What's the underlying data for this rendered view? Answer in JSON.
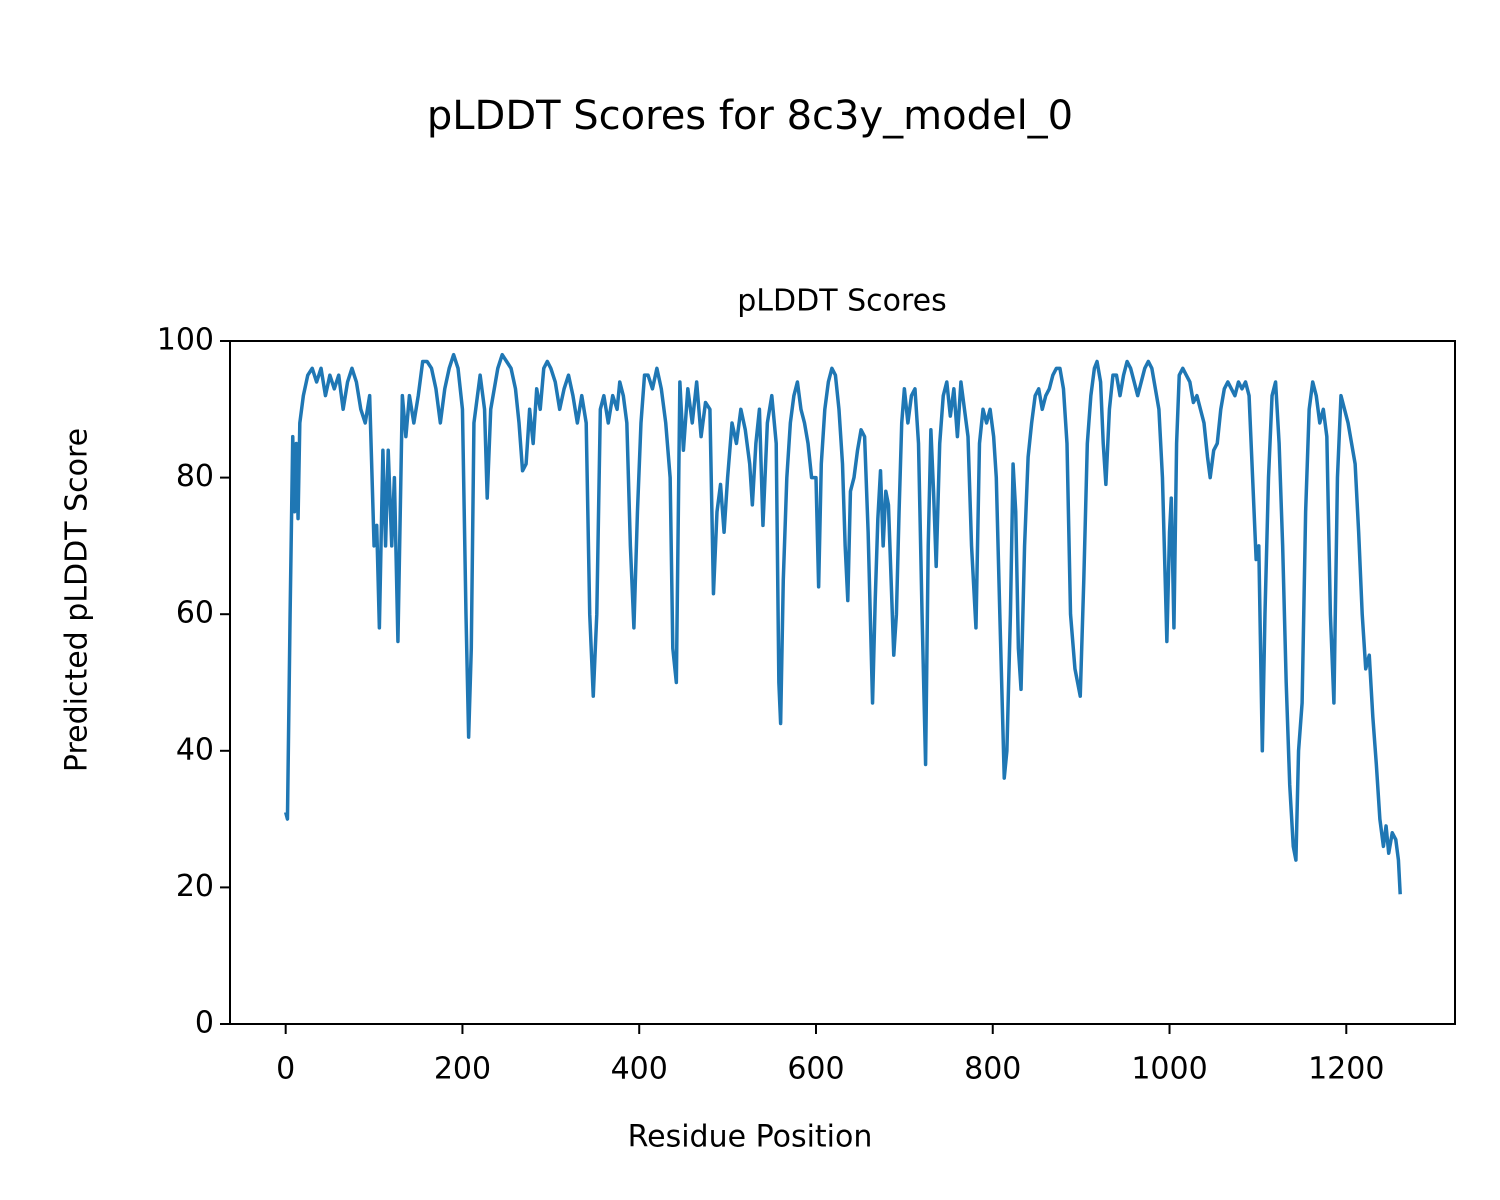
{
  "chart_data": {
    "type": "line",
    "title": "pLDDT Scores for 8c3y_model_0",
    "subtitle": "pLDDT Scores",
    "x_label": "Residue Position",
    "y_label": "Predicted pLDDT Score",
    "color": "#1f77b4",
    "xlim": [
      -63,
      1323
    ],
    "xticks": [
      0,
      200,
      400,
      600,
      800,
      1000,
      1200
    ],
    "ylim": [
      0,
      100
    ],
    "yticks": [
      0,
      20,
      40,
      60,
      80,
      100
    ],
    "grid": false,
    "x": [
      0,
      2,
      5,
      8,
      10,
      12,
      14,
      16,
      20,
      25,
      30,
      35,
      40,
      45,
      50,
      55,
      60,
      65,
      70,
      75,
      80,
      85,
      90,
      95,
      100,
      103,
      106,
      110,
      113,
      116,
      120,
      123,
      127,
      132,
      136,
      140,
      145,
      150,
      155,
      160,
      165,
      170,
      175,
      180,
      185,
      190,
      195,
      200,
      204,
      207,
      210,
      213,
      217,
      220,
      225,
      228,
      232,
      236,
      240,
      245,
      250,
      255,
      260,
      264,
      268,
      272,
      276,
      280,
      284,
      288,
      292,
      296,
      300,
      305,
      310,
      315,
      320,
      325,
      330,
      335,
      340,
      344,
      348,
      352,
      356,
      360,
      365,
      370,
      375,
      378,
      382,
      386,
      390,
      394,
      398,
      402,
      406,
      410,
      415,
      420,
      425,
      430,
      435,
      438,
      442,
      446,
      450,
      455,
      460,
      465,
      470,
      475,
      480,
      484,
      488,
      492,
      496,
      500,
      505,
      510,
      515,
      520,
      525,
      528,
      532,
      536,
      540,
      545,
      550,
      555,
      558,
      560,
      563,
      567,
      571,
      575,
      579,
      583,
      587,
      591,
      595,
      600,
      603,
      606,
      610,
      614,
      618,
      622,
      626,
      630,
      633,
      636,
      639,
      643,
      647,
      651,
      655,
      659,
      664,
      667,
      670,
      673,
      676,
      679,
      682,
      685,
      688,
      691,
      694,
      697,
      700,
      704,
      708,
      712,
      716,
      720,
      724,
      727,
      730,
      733,
      736,
      740,
      744,
      748,
      752,
      756,
      760,
      764,
      768,
      772,
      776,
      781,
      785,
      789,
      793,
      797,
      801,
      804,
      808,
      813,
      816,
      820,
      823,
      826,
      829,
      832,
      836,
      840,
      844,
      848,
      852,
      856,
      860,
      864,
      868,
      872,
      876,
      880,
      884,
      888,
      893,
      899,
      903,
      907,
      911,
      915,
      918,
      922,
      925,
      928,
      932,
      936,
      940,
      944,
      948,
      952,
      956,
      960,
      964,
      968,
      972,
      976,
      980,
      984,
      988,
      992,
      997,
      1000,
      1002,
      1005,
      1008,
      1011,
      1015,
      1019,
      1023,
      1027,
      1031,
      1035,
      1039,
      1043,
      1046,
      1050,
      1054,
      1058,
      1062,
      1066,
      1070,
      1074,
      1078,
      1082,
      1086,
      1090,
      1094,
      1098,
      1101,
      1105,
      1108,
      1112,
      1116,
      1120,
      1124,
      1128,
      1132,
      1136,
      1140,
      1143,
      1146,
      1150,
      1154,
      1158,
      1162,
      1166,
      1170,
      1174,
      1178,
      1182,
      1186,
      1190,
      1194,
      1198,
      1202,
      1206,
      1210,
      1214,
      1218,
      1222,
      1226,
      1230,
      1234,
      1238,
      1242,
      1245,
      1248,
      1252,
      1256,
      1259,
      1261
    ],
    "values": [
      31,
      30,
      60,
      86,
      75,
      85,
      74,
      88,
      92,
      95,
      96,
      94,
      96,
      92,
      95,
      93,
      95,
      90,
      94,
      96,
      94,
      90,
      88,
      92,
      70,
      73,
      58,
      84,
      70,
      84,
      70,
      80,
      56,
      92,
      86,
      92,
      88,
      92,
      97,
      97,
      96,
      93,
      88,
      93,
      96,
      98,
      96,
      90,
      60,
      42,
      55,
      88,
      92,
      95,
      90,
      77,
      90,
      93,
      96,
      98,
      97,
      96,
      93,
      88,
      81,
      82,
      90,
      85,
      93,
      90,
      96,
      97,
      96,
      94,
      90,
      93,
      95,
      92,
      88,
      92,
      88,
      60,
      48,
      60,
      90,
      92,
      88,
      92,
      90,
      94,
      92,
      88,
      70,
      58,
      75,
      88,
      95,
      95,
      93,
      96,
      93,
      88,
      80,
      55,
      50,
      94,
      84,
      93,
      88,
      94,
      86,
      91,
      90,
      63,
      75,
      79,
      72,
      80,
      88,
      85,
      90,
      87,
      82,
      76,
      85,
      90,
      73,
      88,
      92,
      85,
      50,
      44,
      65,
      80,
      88,
      92,
      94,
      90,
      88,
      85,
      80,
      80,
      64,
      82,
      90,
      94,
      96,
      95,
      90,
      82,
      70,
      62,
      78,
      80,
      84,
      87,
      86,
      72,
      47,
      62,
      74,
      81,
      70,
      78,
      76,
      65,
      54,
      60,
      75,
      88,
      93,
      88,
      92,
      93,
      85,
      60,
      38,
      70,
      87,
      78,
      67,
      85,
      92,
      94,
      89,
      93,
      86,
      94,
      90,
      86,
      70,
      58,
      85,
      90,
      88,
      90,
      86,
      80,
      60,
      36,
      40,
      60,
      82,
      75,
      55,
      49,
      70,
      83,
      88,
      92,
      93,
      90,
      92,
      93,
      95,
      96,
      96,
      93,
      85,
      60,
      52,
      48,
      65,
      85,
      92,
      96,
      97,
      94,
      85,
      79,
      90,
      95,
      95,
      92,
      95,
      97,
      96,
      94,
      92,
      94,
      96,
      97,
      96,
      93,
      90,
      80,
      56,
      72,
      77,
      58,
      85,
      95,
      96,
      95,
      94,
      91,
      92,
      90,
      88,
      83,
      80,
      84,
      85,
      90,
      93,
      94,
      93,
      92,
      94,
      93,
      94,
      92,
      80,
      68,
      70,
      40,
      60,
      80,
      92,
      94,
      85,
      70,
      50,
      35,
      26,
      24,
      40,
      47,
      75,
      90,
      94,
      92,
      88,
      90,
      86,
      60,
      47,
      80,
      92,
      90,
      88,
      85,
      82,
      72,
      60,
      52,
      54,
      45,
      38,
      30,
      26,
      29,
      25,
      28,
      27,
      24,
      19
    ]
  }
}
